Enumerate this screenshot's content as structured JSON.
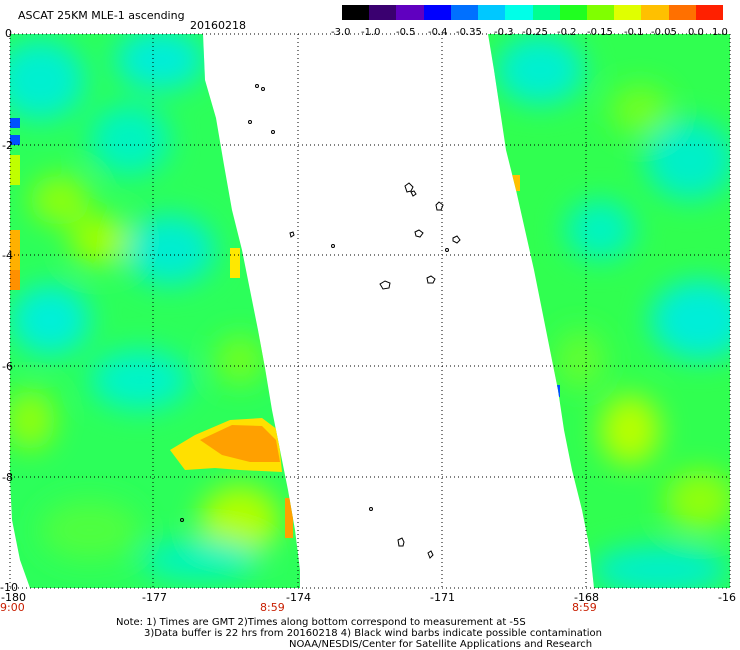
{
  "header": {
    "title": "ASCAT 25KM MLE-1 ascending",
    "date": "20160218"
  },
  "colorbar": {
    "labels": [
      "-3.0",
      "-1.0",
      "-0.5",
      "-0.4",
      "-0.35",
      "-0.3",
      "-0.25",
      "-0.2",
      "-0.15",
      "-0.1",
      "-0.05",
      "0.0",
      "1.0"
    ],
    "colors": [
      "#1a0010",
      "#5a0090",
      "#0000ff",
      "#0090ff",
      "#00e8ff",
      "#00ffc8",
      "#00ff60",
      "#28ff00",
      "#a8ff00",
      "#ffff00",
      "#ffa000",
      "#ff4000",
      "#ff0000"
    ]
  },
  "axes": {
    "lat_labels": [
      "0",
      "-2",
      "-4",
      "-6",
      "-8",
      "-10"
    ],
    "lon_labels": [
      "-180",
      "-177",
      "-174",
      "-171",
      "-168",
      "-16"
    ],
    "time_labels": [
      "9:00",
      "8:59",
      "8:59"
    ]
  },
  "notes": {
    "line1": "Note: 1) Times are GMT 2)Times along bottom correspond to measurement at -5S",
    "line2": "3)Data buffer is 22 hrs from 20160218 4) Black wind barbs indicate possible contamination",
    "line3": "NOAA/NESDIS/Center for Satellite Applications and Research"
  }
}
